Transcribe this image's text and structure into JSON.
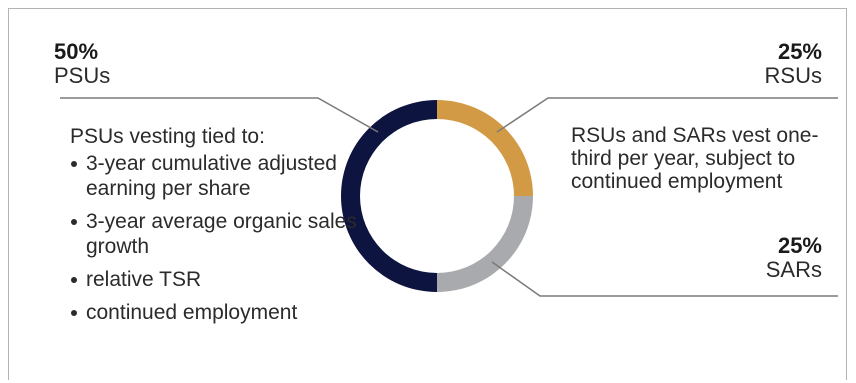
{
  "chart_data": {
    "type": "pie",
    "variant": "donut",
    "slices": [
      {
        "label": "RSUs",
        "percent_label": "25%",
        "value": 25,
        "color": "#d39a45"
      },
      {
        "label": "SARs",
        "percent_label": "25%",
        "value": 25,
        "color": "#a9aaad"
      },
      {
        "label": "PSUs",
        "percent_label": "50%",
        "value": 50,
        "color": "#0d1440"
      }
    ]
  },
  "labels": {
    "psu": {
      "pct": "50%",
      "name": "PSUs"
    },
    "rsu": {
      "pct": "25%",
      "name": "RSUs"
    },
    "sar": {
      "pct": "25%",
      "name": "SARs"
    }
  },
  "psu_notes": {
    "intro": "PSUs vesting tied to:",
    "items": [
      "3-year cumulative adjusted earning per share",
      "3-year average organic sales growth",
      "relative TSR",
      "continued employment"
    ]
  },
  "rsu_notes": {
    "text": "RSUs and SARs vest one-third per year, subject to continued employment"
  }
}
